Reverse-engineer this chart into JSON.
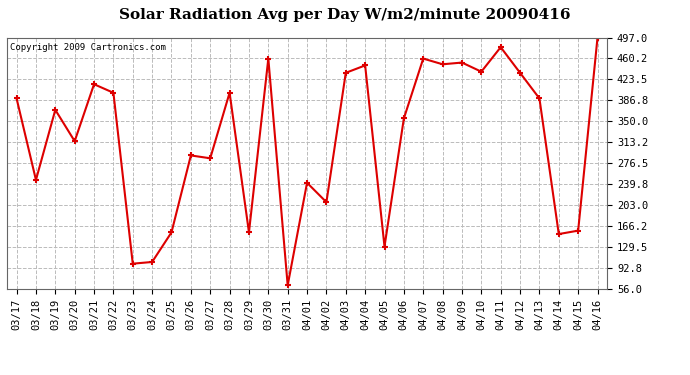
{
  "title": "Solar Radiation Avg per Day W/m2/minute 20090416",
  "copyright_text": "Copyright 2009 Cartronics.com",
  "dates": [
    "03/17",
    "03/18",
    "03/19",
    "03/20",
    "03/21",
    "03/22",
    "03/23",
    "03/24",
    "03/25",
    "03/26",
    "03/27",
    "03/28",
    "03/29",
    "03/30",
    "03/31",
    "04/01",
    "04/02",
    "04/03",
    "04/04",
    "04/05",
    "04/06",
    "04/07",
    "04/08",
    "04/09",
    "04/10",
    "04/11",
    "04/12",
    "04/13",
    "04/14",
    "04/15",
    "04/16"
  ],
  "values": [
    390,
    247,
    370,
    315,
    415,
    400,
    100,
    103,
    155,
    290,
    285,
    400,
    155,
    460,
    62,
    242,
    208,
    435,
    448,
    130,
    355,
    460,
    450,
    453,
    437,
    480,
    435,
    390,
    152,
    158,
    497
  ],
  "line_color": "#dd0000",
  "marker_color": "#dd0000",
  "bg_color": "#ffffff",
  "plot_bg_color": "#ffffff",
  "grid_color": "#bbbbbb",
  "yticks": [
    56.0,
    92.8,
    129.5,
    166.2,
    203.0,
    239.8,
    276.5,
    313.2,
    350.0,
    386.8,
    423.5,
    460.2,
    497.0
  ],
  "ylim": [
    56.0,
    497.0
  ],
  "title_fontsize": 11,
  "copyright_fontsize": 6.5,
  "tick_fontsize": 7.5
}
